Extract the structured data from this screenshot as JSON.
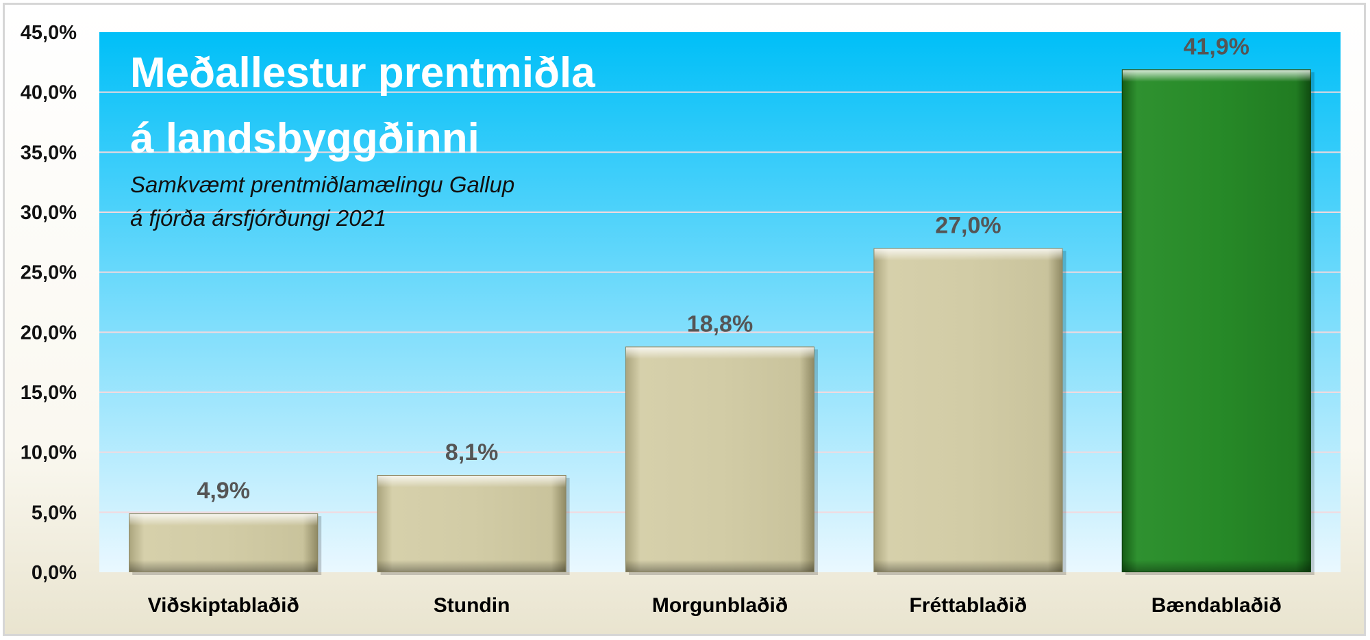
{
  "chart_data": {
    "type": "bar",
    "title_lines": [
      "Meðallestur prentmiðla",
      "á landsbyggðinni"
    ],
    "subtitle_lines": [
      "Samkvæmt prentmiðlamælingu Gallup",
      "á fjórða ársfjórðungi 2021"
    ],
    "categories": [
      "Viðskiptablaðið",
      "Stundin",
      "Morgunblaðið",
      "Fréttablaðið",
      "Bændablaðið"
    ],
    "values": [
      4.9,
      8.1,
      18.8,
      27.0,
      41.9
    ],
    "data_labels": [
      "4,9%",
      "8,1%",
      "18,8%",
      "27,0%",
      "41,9%"
    ],
    "ylim": [
      0,
      45
    ],
    "yticks": [
      0,
      5,
      10,
      15,
      20,
      25,
      30,
      35,
      40,
      45
    ],
    "ytick_labels": [
      "0,0%",
      "5,0%",
      "10,0%",
      "15,0%",
      "20,0%",
      "25,0%",
      "30,0%",
      "35,0%",
      "40,0%",
      "45,0%"
    ],
    "xlabel": "",
    "ylabel": "",
    "grid": true,
    "legend": "none",
    "colors": {
      "bar_default": "#cfc9a3",
      "bar_highlight": "#2a8a2a",
      "plot_bg_top": "#00bff8",
      "plot_bg_bottom": "#eaf8ff",
      "gridline": "#f3d9de",
      "data_label": "#555555"
    },
    "highlight_index": 4
  }
}
